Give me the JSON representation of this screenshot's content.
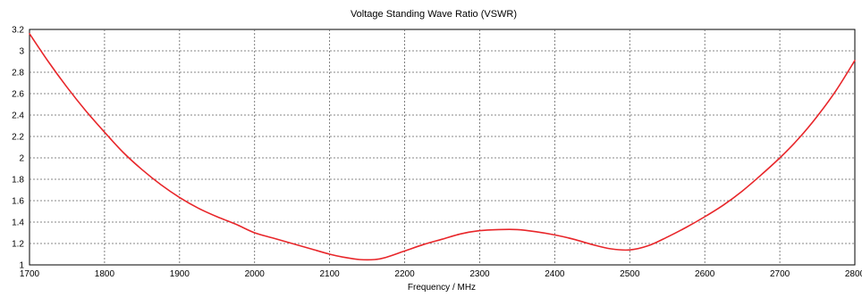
{
  "chart_data": {
    "type": "line",
    "title": "Voltage Standing Wave Ratio (VSWR)",
    "xlabel": "Frequency / MHz",
    "ylabel": "",
    "xlim": [
      1700,
      2800
    ],
    "ylim": [
      1,
      3.2
    ],
    "grid": true,
    "x_ticks": [
      1700,
      1800,
      1900,
      2000,
      2100,
      2200,
      2300,
      2400,
      2500,
      2600,
      2700,
      2800
    ],
    "y_ticks": [
      1,
      1.2,
      1.4,
      1.6,
      1.8,
      2,
      2.2,
      2.4,
      2.6,
      2.8,
      3,
      3.2
    ],
    "series": [
      {
        "color": "#e8262a",
        "x": [
          1700,
          1725,
          1750,
          1775,
          1800,
          1825,
          1850,
          1875,
          1900,
          1925,
          1950,
          1975,
          2000,
          2025,
          2050,
          2075,
          2100,
          2120,
          2140,
          2160,
          2175,
          2200,
          2225,
          2250,
          2275,
          2300,
          2325,
          2350,
          2375,
          2400,
          2425,
          2450,
          2475,
          2500,
          2525,
          2550,
          2575,
          2600,
          2625,
          2650,
          2675,
          2700,
          2725,
          2750,
          2775,
          2800
        ],
        "values": [
          3.16,
          2.9,
          2.66,
          2.44,
          2.24,
          2.05,
          1.89,
          1.75,
          1.63,
          1.53,
          1.45,
          1.38,
          1.3,
          1.25,
          1.2,
          1.15,
          1.1,
          1.07,
          1.05,
          1.05,
          1.07,
          1.13,
          1.19,
          1.24,
          1.29,
          1.32,
          1.33,
          1.33,
          1.31,
          1.28,
          1.24,
          1.19,
          1.15,
          1.14,
          1.18,
          1.26,
          1.35,
          1.45,
          1.56,
          1.69,
          1.84,
          2.0,
          2.18,
          2.39,
          2.63,
          2.91
        ]
      }
    ]
  }
}
